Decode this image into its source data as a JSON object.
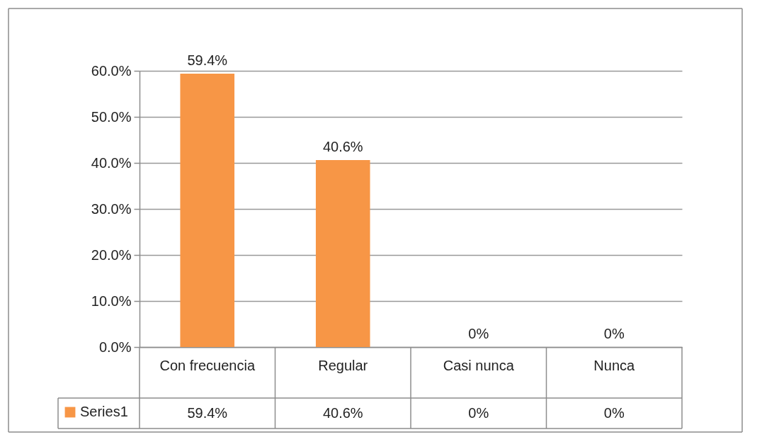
{
  "chart_data": {
    "type": "bar",
    "categories": [
      "Con frecuencia",
      "Regular",
      "Casi nunca",
      "Nunca"
    ],
    "series": [
      {
        "name": "Series1",
        "color": "#f79646",
        "values": [
          59.4,
          40.6,
          0,
          0
        ],
        "value_labels": [
          "59.4%",
          "40.6%",
          "0%",
          "0%"
        ]
      }
    ],
    "ylim": [
      0,
      60
    ],
    "yticks": [
      {
        "value": 0,
        "label": "0.0%"
      },
      {
        "value": 10,
        "label": "10.0%"
      },
      {
        "value": 20,
        "label": "20.0%"
      },
      {
        "value": 30,
        "label": "30.0%"
      },
      {
        "value": 40,
        "label": "40.0%"
      },
      {
        "value": 50,
        "label": "50.0%"
      },
      {
        "value": 60,
        "label": "60.0%"
      }
    ],
    "grid": "y",
    "legend": "bottom left"
  }
}
